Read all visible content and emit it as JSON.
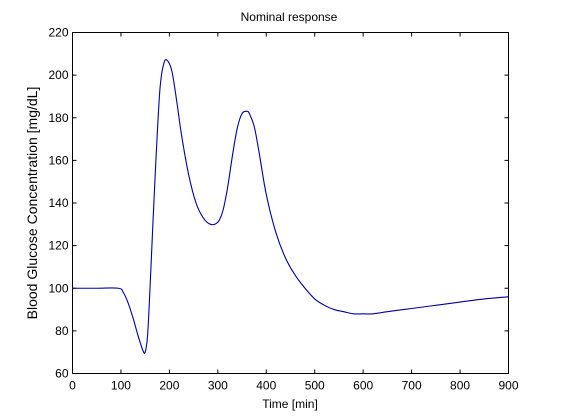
{
  "chart_data": {
    "type": "line",
    "title": "Nominal response",
    "xlabel": "Time [min]",
    "ylabel": "Blood Glucose Concentration [mg/dL]",
    "xlim": [
      0,
      900
    ],
    "ylim": [
      60,
      220
    ],
    "xticks": [
      0,
      100,
      200,
      300,
      400,
      500,
      600,
      700,
      800,
      900
    ],
    "yticks": [
      60,
      80,
      100,
      120,
      140,
      160,
      180,
      200,
      220
    ],
    "grid": false,
    "line_color": "#0000aa",
    "series": [
      {
        "x": [
          0,
          50,
          95,
          105,
          115,
          125,
          135,
          145,
          150,
          155,
          160,
          170,
          180,
          188,
          195,
          205,
          215,
          225,
          240,
          255,
          270,
          285,
          300,
          310,
          320,
          330,
          340,
          350,
          360,
          365,
          375,
          385,
          400,
          420,
          440,
          460,
          480,
          500,
          520,
          540,
          560,
          580,
          600,
          620,
          650,
          700,
          750,
          800,
          850,
          900
        ],
        "y": [
          100,
          100,
          100,
          98,
          93,
          86,
          78,
          71,
          70,
          78,
          100,
          150,
          192,
          205,
          207,
          202,
          188,
          172,
          153,
          140,
          133,
          130,
          131,
          136,
          147,
          162,
          175,
          182,
          183,
          182,
          176,
          164,
          144,
          126,
          114,
          106,
          100,
          95,
          92,
          90,
          89,
          88,
          88,
          88,
          89,
          90.5,
          92,
          93.5,
          95,
          96
        ]
      }
    ]
  }
}
